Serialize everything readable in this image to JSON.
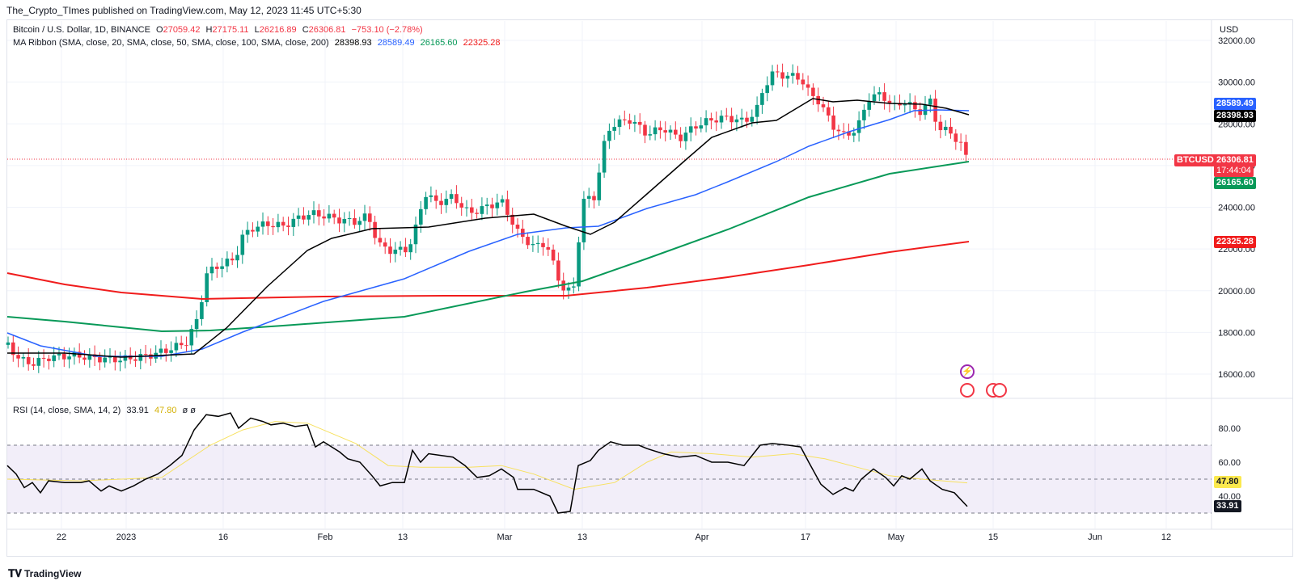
{
  "publisher_line": "The_Crypto_TImes published on TradingView.com, May 12, 2023 11:45 UTC+5:30",
  "footer_logo": "TradingView",
  "main_pane": {
    "symbol_title": "Bitcoin / U.S. Dollar, 1D, BINANCE",
    "ohlc": {
      "o_label": "O",
      "o": "27059.42",
      "h_label": "H",
      "h": "27175.11",
      "l_label": "L",
      "l": "26216.89",
      "c_label": "C",
      "c": "26306.81",
      "change": "−753.10 (−2.78%)"
    },
    "ma_ribbon_label": "MA Ribbon (SMA, close, 20, SMA, close, 50, SMA, close, 100, SMA, close, 200)",
    "ma_values": [
      "28398.93",
      "28589.49",
      "26165.60",
      "22325.28"
    ],
    "currency": "USD",
    "price_ticks": [
      "32000.00",
      "30000.00",
      "28000.00",
      "26000.00",
      "24000.00",
      "22000.00",
      "20000.00",
      "18000.00",
      "16000.00"
    ],
    "tags": {
      "ma50": "28589.49",
      "ma20": "28398.93",
      "symbol": "BTCUSD",
      "last_price": "26306.81",
      "countdown": "17:44:04",
      "ma100": "26165.60",
      "ma200": "22325.28"
    }
  },
  "rsi_pane": {
    "label": "RSI (14, close, SMA, 14, 2)",
    "value": "33.91",
    "sma_value": "47.80",
    "extra": "ø ø",
    "ticks": [
      "80.00",
      "60.00",
      "40.00"
    ],
    "tags": {
      "sma": "47.80",
      "rsi": "33.91"
    }
  },
  "time_axis": [
    "22",
    "2023",
    "16",
    "Feb",
    "13",
    "Mar",
    "13",
    "Apr",
    "17",
    "May",
    "15",
    "Jun",
    "12"
  ],
  "colors": {
    "up": "#089981",
    "down": "#f23645",
    "ma20": "#000000",
    "ma50": "#2962ff",
    "ma100": "#089958",
    "ma200": "#f01c1c",
    "rsi": "#000000",
    "rsi_sma": "#f7e15f",
    "rsi_band": "#7e57c2"
  },
  "icons": [
    "lightning-event-icon",
    "us-flag-event-icon",
    "us-flag-event-icon"
  ]
}
